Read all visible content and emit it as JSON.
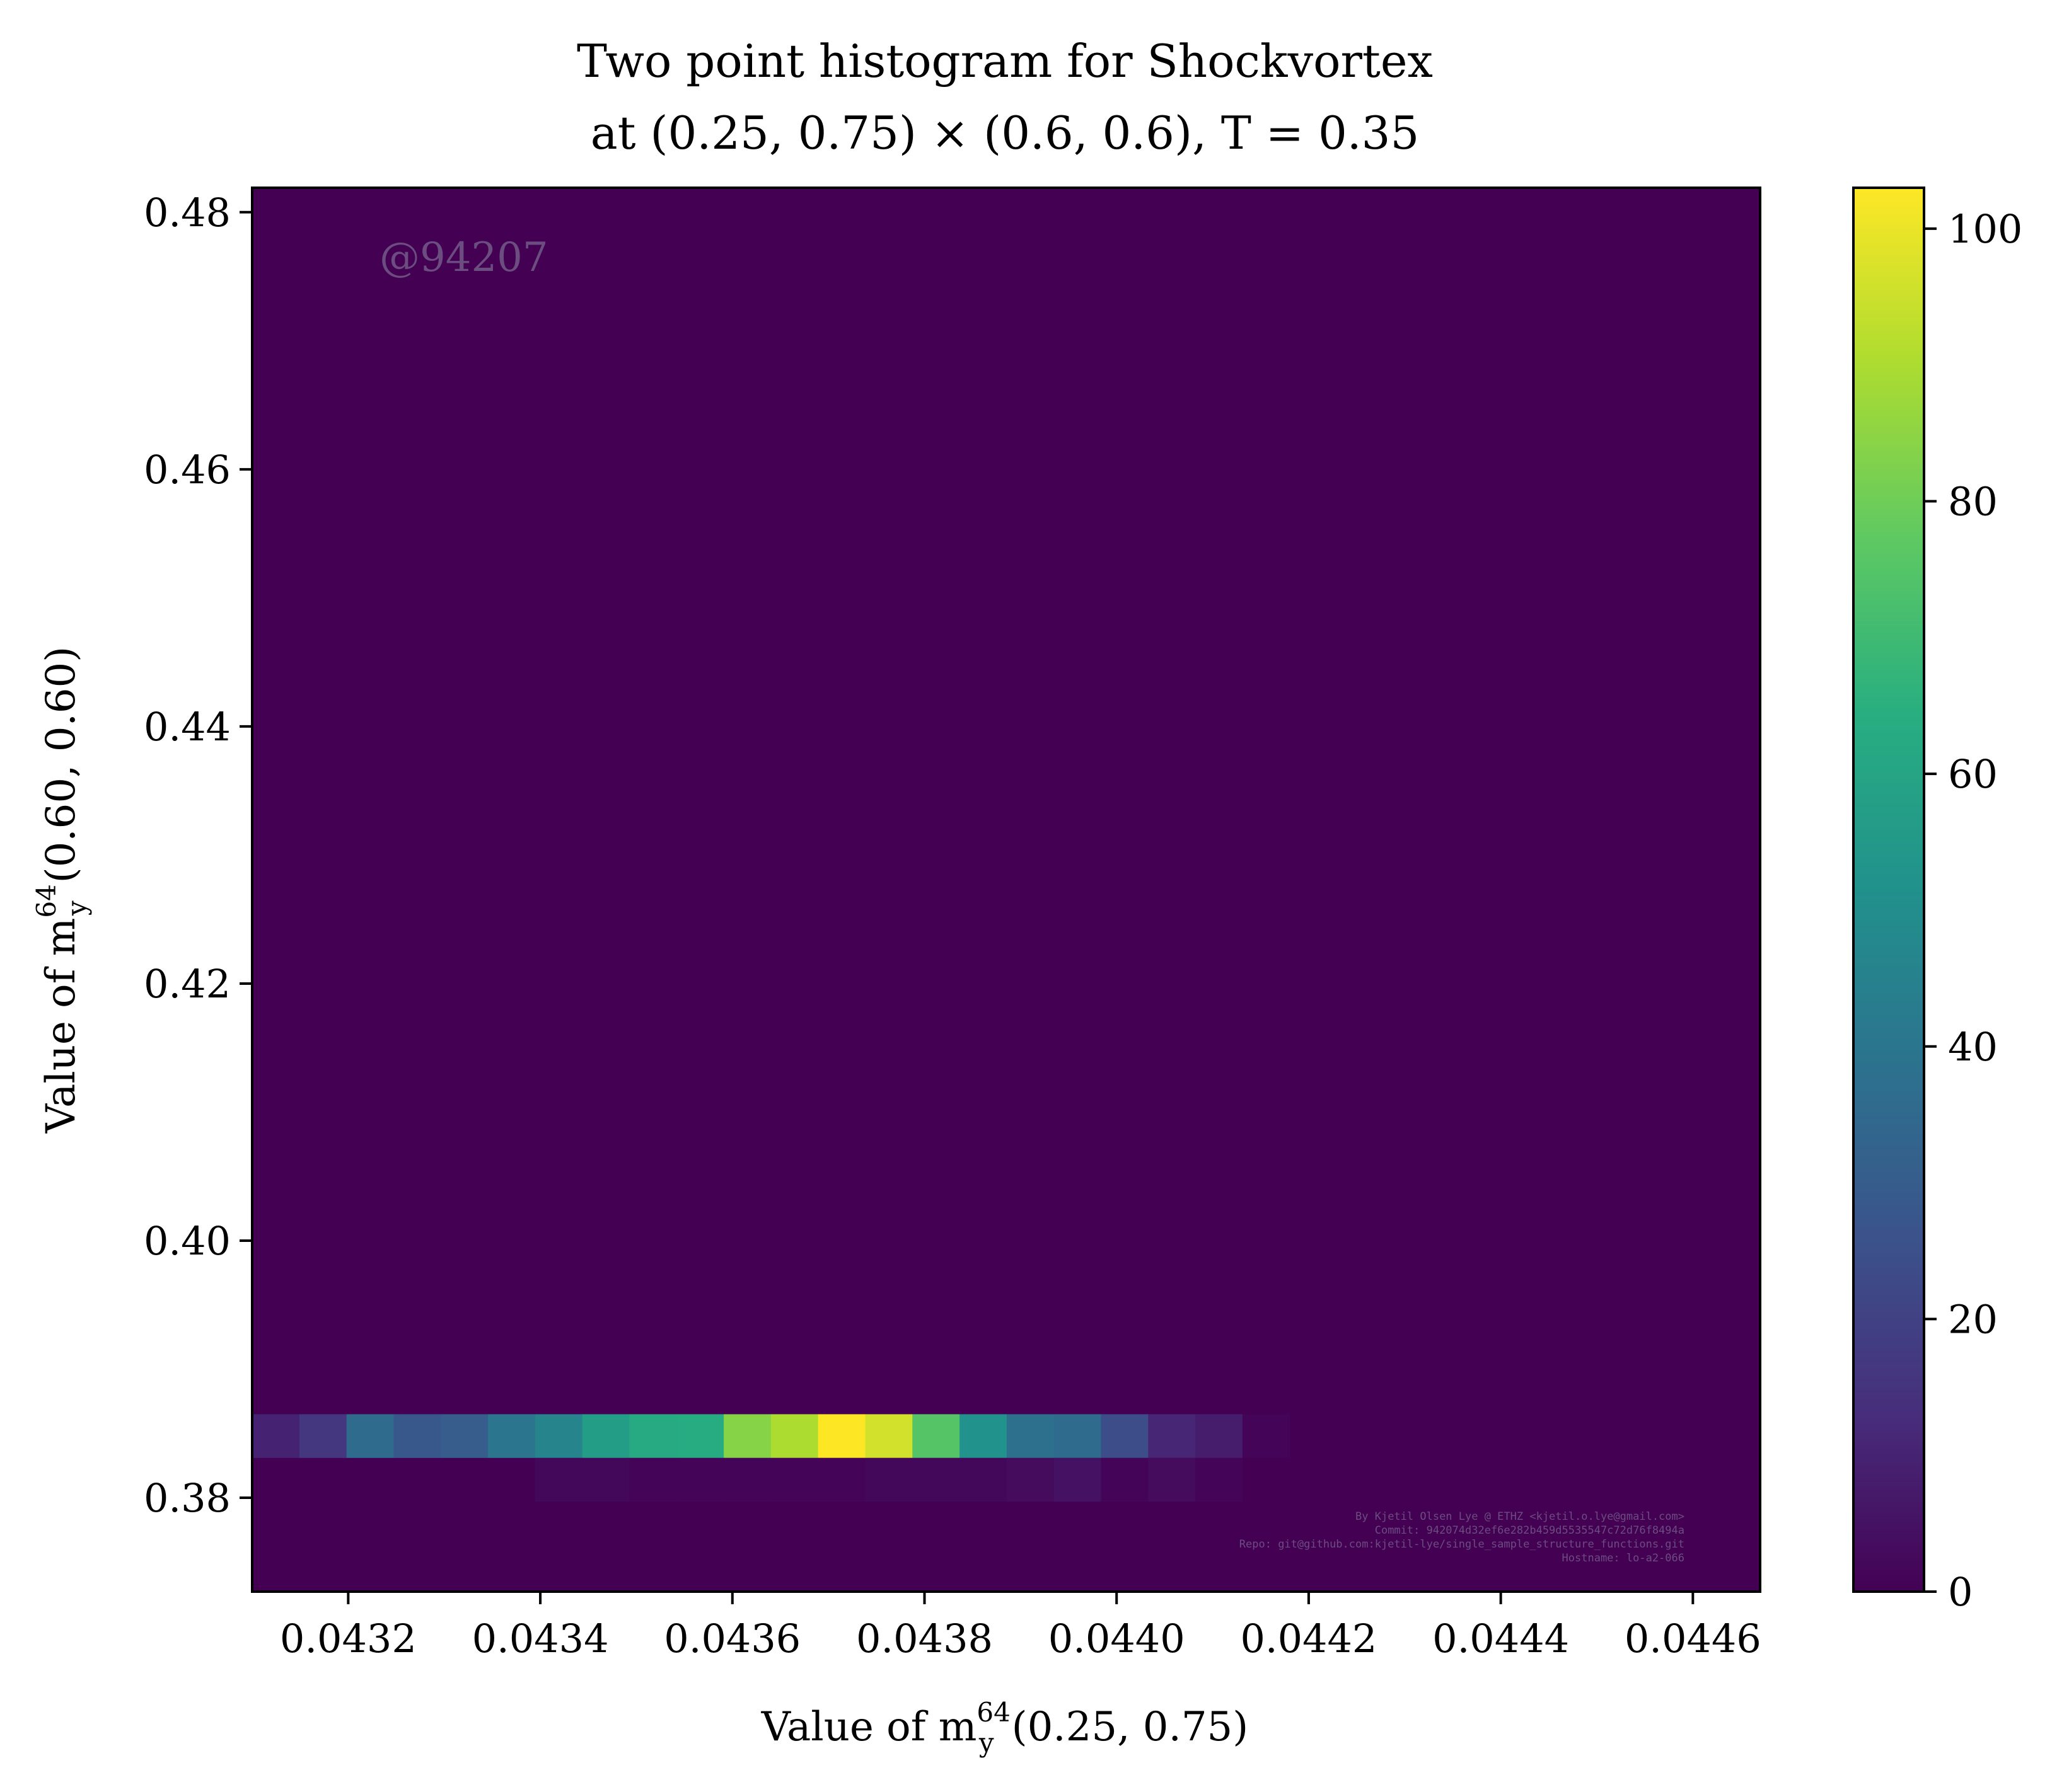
{
  "chart_data": {
    "type": "heatmap",
    "title": "Two point histogram for Shockvortex",
    "subtitle": "at (0.25, 0.75) × (0.6, 0.6), T = 0.35",
    "xlabel": {
      "prefix": "Value of m",
      "sup": "64",
      "sub": "y",
      "suffix": "(0.25, 0.75)"
    },
    "ylabel": {
      "prefix": "Value of m",
      "sup": "64",
      "sub": "y",
      "suffix": "(0.60, 0.60)"
    },
    "xlim": [
      0.0431,
      0.04467
    ],
    "ylim": [
      0.3727,
      0.4819
    ],
    "x_ticks": [
      0.0432,
      0.0434,
      0.0436,
      0.0438,
      0.044,
      0.0442,
      0.0444,
      0.0446
    ],
    "x_tick_labels": [
      "0.0432",
      "0.0434",
      "0.0436",
      "0.0438",
      "0.0440",
      "0.0442",
      "0.0444",
      "0.0446"
    ],
    "y_ticks": [
      0.38,
      0.4,
      0.42,
      0.44,
      0.46,
      0.48
    ],
    "y_tick_labels": [
      "0.38",
      "0.40",
      "0.42",
      "0.44",
      "0.46",
      "0.48"
    ],
    "colorbar": {
      "colormap": "viridis",
      "range": [
        0,
        103
      ],
      "ticks": [
        0,
        20,
        40,
        60,
        80,
        100
      ],
      "tick_labels": [
        "0",
        "20",
        "40",
        "60",
        "80",
        "100"
      ]
    },
    "bins": {
      "x_start": 0.0431,
      "x_step": 4.91e-05,
      "rows": [
        {
          "y_range": [
            0.3831,
            0.3865
          ],
          "values": [
            10,
            16,
            36,
            28,
            30,
            40,
            46,
            57,
            62,
            63,
            84,
            90,
            103,
            96,
            75,
            52,
            38,
            36,
            24,
            11,
            8,
            1,
            0,
            0,
            0,
            0,
            0,
            0,
            0,
            0,
            0,
            0
          ]
        },
        {
          "y_range": [
            0.3797,
            0.3831
          ],
          "values": [
            0,
            0,
            0,
            0,
            0,
            0,
            2,
            2,
            1,
            1,
            1,
            1,
            1,
            2,
            2,
            2,
            3,
            5,
            1,
            3,
            1,
            0,
            0,
            0,
            0,
            0,
            0,
            0,
            0,
            0,
            0,
            0
          ]
        }
      ]
    },
    "background_value": 0
  },
  "watermark": "@94207",
  "credits": [
    "By Kjetil Olsen Lye @ ETHZ <kjetil.o.lye@gmail.com>",
    "Commit: 942074d32ef6e282b459d5535547c72d76f8494a",
    "Repo: git@github.com:kjetil-lye/single_sample_structure_functions.git",
    "Hostname: lo-a2-066"
  ]
}
